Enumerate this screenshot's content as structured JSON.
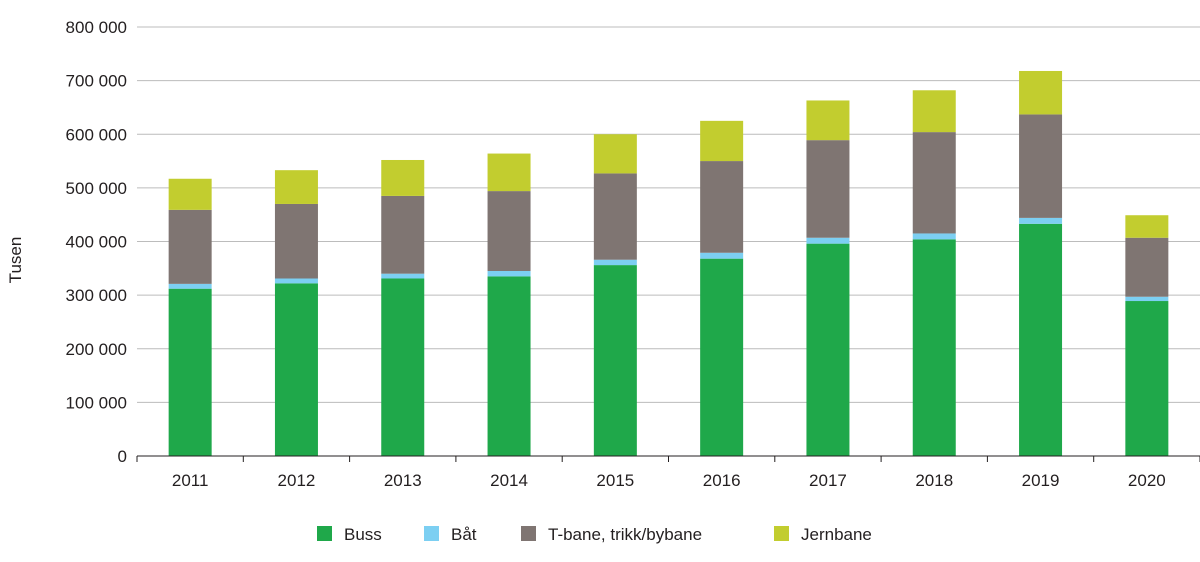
{
  "chart_data": {
    "type": "bar",
    "stacked": true,
    "title": "",
    "xlabel": "",
    "ylabel": "Tusen",
    "ylim": [
      0,
      800000
    ],
    "yticks": [
      0,
      100000,
      200000,
      300000,
      400000,
      500000,
      600000,
      700000,
      800000
    ],
    "ytick_labels": [
      "0",
      "100 000",
      "200 000",
      "300 000",
      "400 000",
      "500 000",
      "600 000",
      "700 000",
      "800 000"
    ],
    "grid": true,
    "legend_position": "bottom",
    "categories": [
      "2011",
      "2012",
      "2013",
      "2014",
      "2015",
      "2016",
      "2017",
      "2018",
      "2019",
      "2020"
    ],
    "series": [
      {
        "name": "Buss",
        "color": "#1fa84a",
        "values": [
          312000,
          322000,
          331000,
          335000,
          356000,
          368000,
          396000,
          404000,
          433000,
          289000
        ]
      },
      {
        "name": "Båt",
        "color": "#7ccff2",
        "values": [
          9000,
          9000,
          9000,
          10000,
          10000,
          11000,
          11000,
          11000,
          11000,
          8000
        ]
      },
      {
        "name": "T-bane, trikk/bybane",
        "color": "#7f7572",
        "values": [
          138000,
          139000,
          145000,
          149000,
          161000,
          171000,
          182000,
          189000,
          193000,
          110000
        ]
      },
      {
        "name": "Jernbane",
        "color": "#c2cd2f",
        "values": [
          58000,
          63000,
          67000,
          70000,
          73000,
          75000,
          74000,
          78000,
          81000,
          42000
        ]
      }
    ]
  }
}
